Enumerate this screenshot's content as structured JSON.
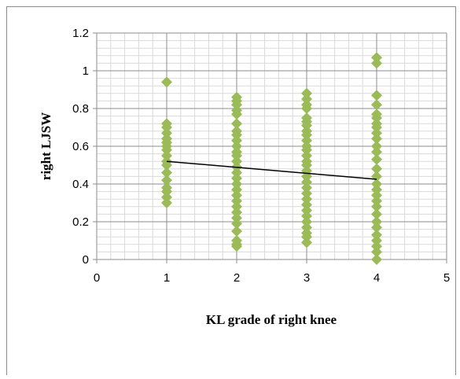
{
  "chart_data": {
    "type": "scatter",
    "xlabel": "KL grade of right knee",
    "ylabel": "right LJSW",
    "xlim": [
      0,
      5
    ],
    "xticks": [
      0,
      1,
      2,
      3,
      4,
      5
    ],
    "ylim": [
      0,
      1.2
    ],
    "yticks": [
      0,
      0.2,
      0.4,
      0.6,
      0.8,
      1,
      1.2
    ],
    "grid": true,
    "minor_grid_step": [
      0.2,
      0.04
    ],
    "series": [
      {
        "color": "#9bbb59",
        "x": [
          1,
          1,
          1,
          1,
          1,
          1,
          1,
          1,
          1,
          1,
          1,
          1,
          1,
          1,
          1,
          1,
          1,
          2,
          2,
          2,
          2,
          2,
          2,
          2,
          2,
          2,
          2,
          2,
          2,
          2,
          2,
          2,
          2,
          2,
          2,
          2,
          2,
          2,
          2,
          2,
          2,
          2,
          2,
          2,
          2,
          3,
          3,
          3,
          3,
          3,
          3,
          3,
          3,
          3,
          3,
          3,
          3,
          3,
          3,
          3,
          3,
          3,
          3,
          3,
          3,
          3,
          3,
          3,
          3,
          3,
          3,
          3,
          3,
          3,
          4,
          4,
          4,
          4,
          4,
          4,
          4,
          4,
          4,
          4,
          4,
          4,
          4,
          4,
          4,
          4,
          4,
          4,
          4,
          4,
          4,
          4,
          4,
          4,
          4,
          4,
          4,
          4
        ],
        "values": [
          0.94,
          0.72,
          0.7,
          0.67,
          0.64,
          0.62,
          0.6,
          0.58,
          0.55,
          0.52,
          0.5,
          0.46,
          0.42,
          0.38,
          0.36,
          0.33,
          0.3,
          0.86,
          0.84,
          0.82,
          0.79,
          0.77,
          0.72,
          0.68,
          0.66,
          0.63,
          0.6,
          0.57,
          0.55,
          0.52,
          0.49,
          0.46,
          0.43,
          0.4,
          0.37,
          0.34,
          0.31,
          0.28,
          0.25,
          0.22,
          0.19,
          0.15,
          0.1,
          0.08,
          0.07,
          0.88,
          0.85,
          0.82,
          0.8,
          0.75,
          0.73,
          0.71,
          0.68,
          0.66,
          0.63,
          0.6,
          0.58,
          0.55,
          0.52,
          0.5,
          0.47,
          0.44,
          0.41,
          0.38,
          0.35,
          0.32,
          0.29,
          0.26,
          0.23,
          0.2,
          0.17,
          0.14,
          0.12,
          0.09,
          1.07,
          1.04,
          0.87,
          0.82,
          0.77,
          0.75,
          0.72,
          0.7,
          0.67,
          0.64,
          0.6,
          0.57,
          0.53,
          0.48,
          0.44,
          0.4,
          0.37,
          0.34,
          0.31,
          0.28,
          0.24,
          0.2,
          0.17,
          0.13,
          0.1,
          0.07,
          0.04,
          0.0
        ]
      }
    ],
    "trendline": {
      "color": "#000000",
      "x": [
        1,
        4
      ],
      "values": [
        0.52,
        0.425
      ]
    }
  }
}
